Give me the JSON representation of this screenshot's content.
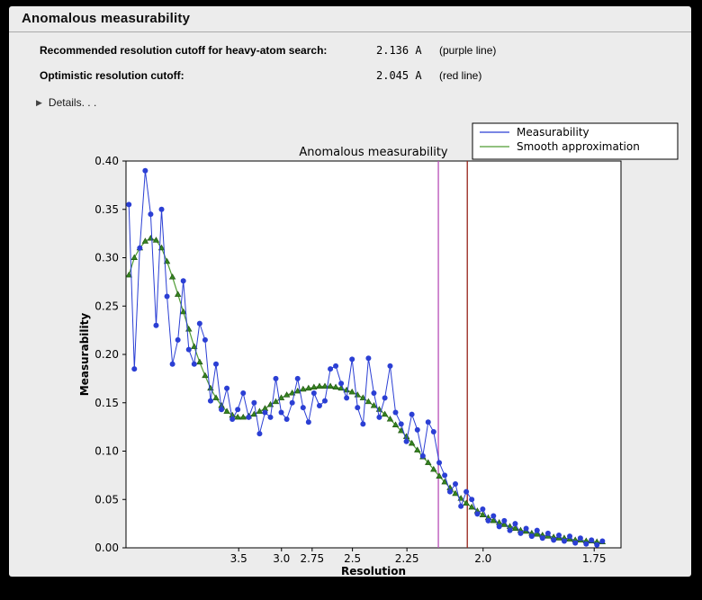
{
  "window": {
    "title": "Anomalous measurability"
  },
  "info": {
    "rows": [
      {
        "label": "Recommended resolution cutoff for heavy-atom search:",
        "value": "2.136 A",
        "note": "(purple line)"
      },
      {
        "label": "Optimistic resolution cutoff:",
        "value": "2.045 A",
        "note": "(red line)"
      }
    ],
    "details_label": "Details. . ."
  },
  "chart_data": {
    "type": "line",
    "title": "Anomalous measurability",
    "xlabel": "Resolution",
    "ylabel": "Measurability",
    "x_scale": "inverse_resolution_squared",
    "x_tick_labels": [
      "3.5",
      "3.0",
      "2.75",
      "2.5",
      "2.25",
      "2.0",
      "1.75"
    ],
    "x_range_s": [
      0.004,
      0.345
    ],
    "ylim": [
      0.0,
      0.4
    ],
    "y_ticks": [
      0.0,
      0.05,
      0.1,
      0.15,
      0.2,
      0.25,
      0.3,
      0.35,
      0.4
    ],
    "grid": false,
    "legend_position": "upper right, above plot",
    "colors": {
      "measurability": "#2b3fd4",
      "smooth": "#4f9c33",
      "smooth_marker": "#35831f",
      "purple_line": "#b84fb8",
      "red_line": "#97231a"
    },
    "vlines": [
      {
        "resolution": 2.136,
        "color": "#b84fb8",
        "meaning": "Recommended resolution cutoff (purple line)"
      },
      {
        "resolution": 2.045,
        "color": "#97231a",
        "meaning": "Optimistic resolution cutoff (red line)"
      }
    ],
    "resolution_A": [
      12.91,
      10.127,
      8.607,
      7.614,
      6.901,
      6.356,
      5.923,
      5.568,
      5.27,
      5.016,
      4.795,
      4.6,
      4.428,
      4.274,
      4.134,
      4.008,
      3.892,
      3.786,
      3.689,
      3.598,
      3.514,
      3.435,
      3.361,
      3.292,
      3.227,
      3.166,
      3.108,
      3.054,
      3.002,
      2.952,
      2.905,
      2.86,
      2.817,
      2.776,
      2.737,
      2.699,
      2.663,
      2.628,
      2.595,
      2.563,
      2.532,
      2.502,
      2.473,
      2.445,
      2.418,
      2.392,
      2.367,
      2.342,
      2.319,
      2.296,
      2.273,
      2.252,
      2.231,
      2.21,
      2.19,
      2.171,
      2.152,
      2.133,
      2.115,
      2.098,
      2.081,
      2.064,
      2.048,
      2.032,
      2.016,
      2.001,
      1.986,
      1.972,
      1.957,
      1.944,
      1.93,
      1.917,
      1.904,
      1.891,
      1.878,
      1.866,
      1.854,
      1.842,
      1.83,
      1.819,
      1.808,
      1.797,
      1.786,
      1.776,
      1.765,
      1.755,
      1.745,
      1.735
    ],
    "series": [
      {
        "name": "Measurability",
        "marker": "circle",
        "values": [
          0.355,
          0.185,
          0.31,
          0.39,
          0.345,
          0.23,
          0.35,
          0.26,
          0.19,
          0.215,
          0.276,
          0.205,
          0.19,
          0.232,
          0.215,
          0.152,
          0.19,
          0.143,
          0.165,
          0.133,
          0.143,
          0.16,
          0.135,
          0.15,
          0.118,
          0.14,
          0.135,
          0.175,
          0.14,
          0.133,
          0.15,
          0.175,
          0.145,
          0.13,
          0.16,
          0.147,
          0.152,
          0.185,
          0.188,
          0.17,
          0.155,
          0.195,
          0.145,
          0.128,
          0.196,
          0.16,
          0.135,
          0.155,
          0.188,
          0.14,
          0.128,
          0.11,
          0.138,
          0.122,
          0.095,
          0.13,
          0.12,
          0.088,
          0.075,
          0.058,
          0.066,
          0.043,
          0.058,
          0.05,
          0.035,
          0.04,
          0.028,
          0.033,
          0.022,
          0.028,
          0.018,
          0.025,
          0.015,
          0.02,
          0.012,
          0.018,
          0.01,
          0.015,
          0.008,
          0.013,
          0.007,
          0.012,
          0.005,
          0.01,
          0.004,
          0.008,
          0.003,
          0.007
        ]
      },
      {
        "name": "Smooth approximation",
        "marker": "triangle",
        "values": [
          0.282,
          0.3,
          0.31,
          0.317,
          0.32,
          0.318,
          0.31,
          0.296,
          0.28,
          0.262,
          0.244,
          0.226,
          0.208,
          0.192,
          0.178,
          0.165,
          0.155,
          0.147,
          0.141,
          0.137,
          0.135,
          0.135,
          0.136,
          0.138,
          0.141,
          0.144,
          0.148,
          0.151,
          0.155,
          0.158,
          0.16,
          0.162,
          0.164,
          0.165,
          0.166,
          0.167,
          0.167,
          0.167,
          0.166,
          0.165,
          0.163,
          0.161,
          0.158,
          0.155,
          0.151,
          0.147,
          0.143,
          0.138,
          0.133,
          0.127,
          0.121,
          0.115,
          0.108,
          0.101,
          0.094,
          0.088,
          0.081,
          0.074,
          0.068,
          0.062,
          0.056,
          0.051,
          0.046,
          0.042,
          0.038,
          0.034,
          0.031,
          0.028,
          0.026,
          0.024,
          0.022,
          0.02,
          0.018,
          0.017,
          0.015,
          0.014,
          0.013,
          0.012,
          0.011,
          0.01,
          0.01,
          0.009,
          0.008,
          0.008,
          0.007,
          0.007,
          0.006,
          0.006
        ]
      }
    ]
  }
}
